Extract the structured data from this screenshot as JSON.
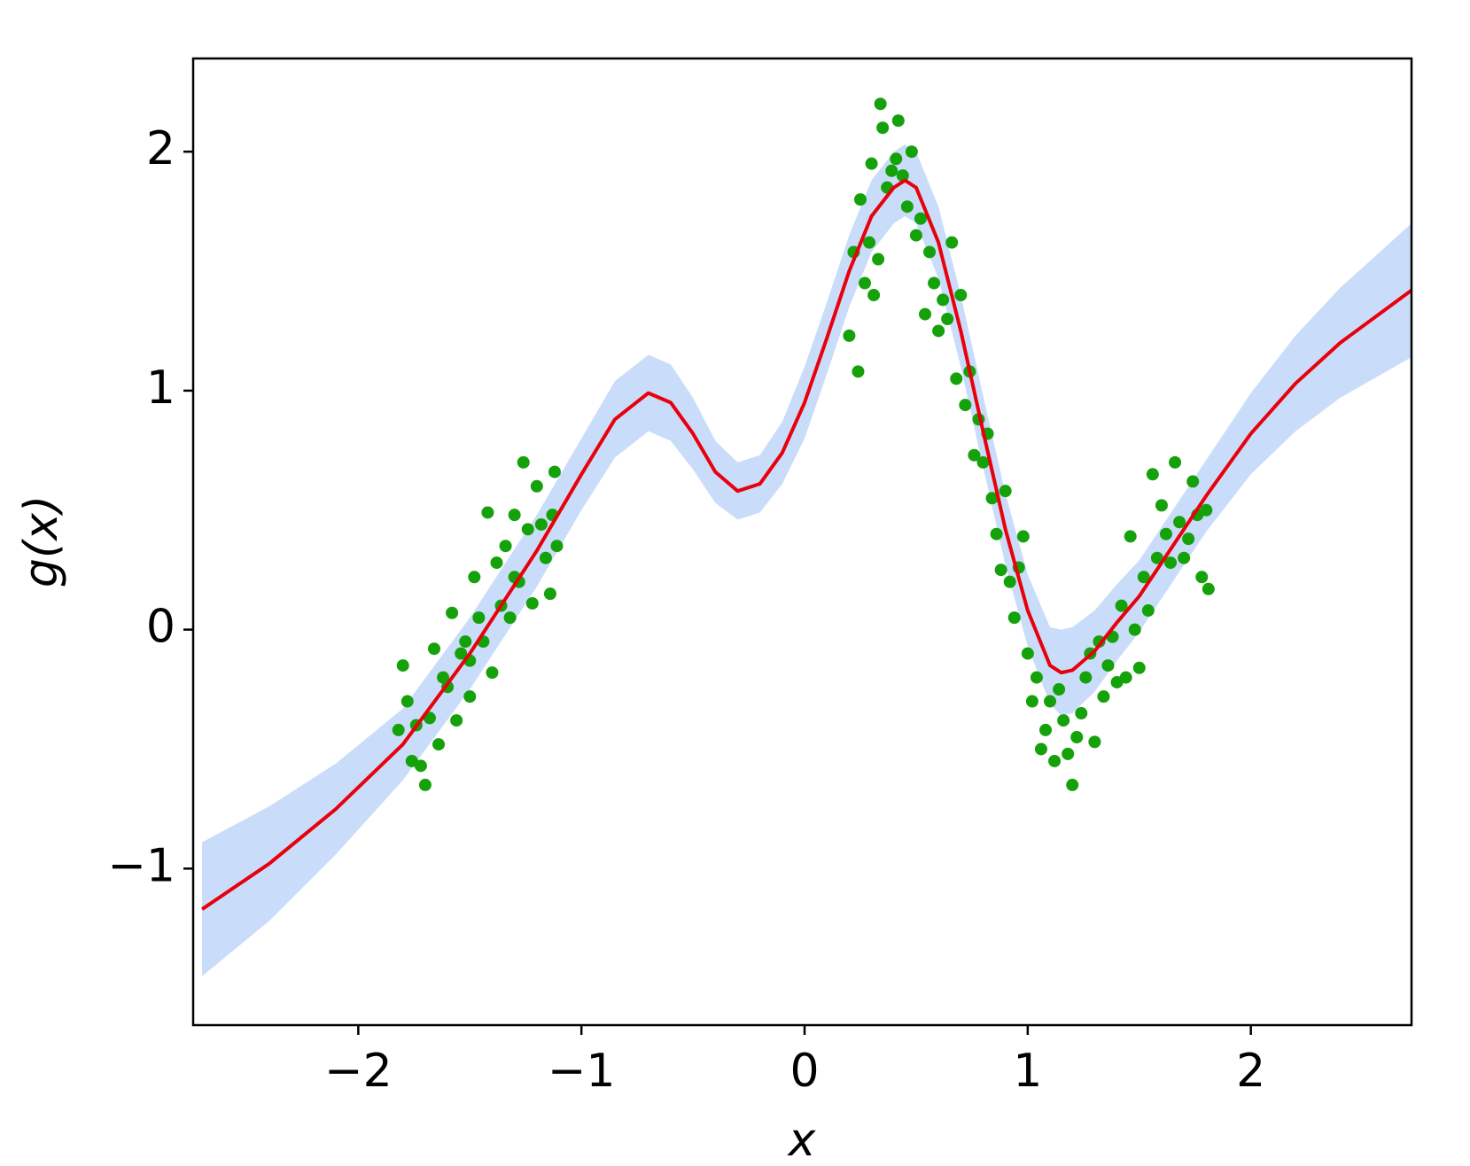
{
  "chart_data": {
    "type": "line",
    "xlabel": "x",
    "ylabel": "g(x)",
    "xlim": [
      -2.74,
      2.72
    ],
    "ylim": [
      -1.655,
      2.39
    ],
    "xticks": [
      {
        "value": -2,
        "label": "−2"
      },
      {
        "value": -1,
        "label": "−1"
      },
      0,
      1,
      2
    ],
    "yticks": [
      {
        "value": -1,
        "label": "−1"
      },
      0,
      1,
      2
    ],
    "x": [
      -2.7,
      -2.4,
      -2.1,
      -1.8,
      -1.5,
      -1.2,
      -1.0,
      -0.85,
      -0.7,
      -0.6,
      -0.5,
      -0.4,
      -0.3,
      -0.2,
      -0.1,
      0.0,
      0.1,
      0.2,
      0.3,
      0.4,
      0.45,
      0.5,
      0.6,
      0.7,
      0.8,
      0.9,
      1.0,
      1.1,
      1.15,
      1.2,
      1.3,
      1.4,
      1.5,
      1.6,
      1.7,
      1.8,
      2.0,
      2.2,
      2.4,
      2.72
    ],
    "series": [
      {
        "color": "#e8000b",
        "values": [
          -1.17,
          -0.98,
          -0.75,
          -0.48,
          -0.1,
          0.33,
          0.65,
          0.88,
          0.99,
          0.95,
          0.82,
          0.66,
          0.58,
          0.61,
          0.74,
          0.95,
          1.22,
          1.5,
          1.73,
          1.85,
          1.88,
          1.85,
          1.62,
          1.25,
          0.83,
          0.42,
          0.08,
          -0.15,
          -0.18,
          -0.17,
          -0.09,
          0.03,
          0.14,
          0.28,
          0.42,
          0.56,
          0.82,
          1.03,
          1.2,
          1.42
        ]
      }
    ],
    "band": {
      "color": "#c9dcfa",
      "upper": [
        -0.89,
        -0.74,
        -0.56,
        -0.33,
        0.05,
        0.48,
        0.8,
        1.04,
        1.15,
        1.11,
        0.97,
        0.79,
        0.7,
        0.73,
        0.87,
        1.1,
        1.37,
        1.65,
        1.88,
        2.0,
        2.03,
        2.0,
        1.77,
        1.4,
        0.98,
        0.57,
        0.23,
        0.01,
        0.0,
        0.01,
        0.08,
        0.19,
        0.29,
        0.43,
        0.57,
        0.71,
        0.99,
        1.23,
        1.43,
        1.7
      ],
      "lower": [
        -1.45,
        -1.22,
        -0.94,
        -0.63,
        -0.25,
        0.18,
        0.5,
        0.72,
        0.83,
        0.79,
        0.67,
        0.53,
        0.46,
        0.49,
        0.61,
        0.8,
        1.07,
        1.35,
        1.58,
        1.7,
        1.73,
        1.7,
        1.47,
        1.1,
        0.68,
        0.27,
        -0.07,
        -0.31,
        -0.36,
        -0.35,
        -0.26,
        -0.13,
        -0.01,
        0.13,
        0.27,
        0.41,
        0.65,
        0.83,
        0.97,
        1.14
      ]
    },
    "scatter": {
      "color": "#14a10a",
      "x": [
        -1.82,
        -1.8,
        -1.78,
        -1.76,
        -1.72,
        -1.7,
        -1.68,
        -1.66,
        -1.64,
        -1.62,
        -1.6,
        -1.58,
        -1.56,
        -1.54,
        -1.52,
        -1.5,
        -1.48,
        -1.46,
        -1.44,
        -1.42,
        -1.4,
        -1.38,
        -1.36,
        -1.34,
        -1.32,
        -1.3,
        -1.28,
        -1.26,
        -1.24,
        -1.22,
        -1.2,
        -1.18,
        -1.16,
        -1.14,
        -1.12,
        -1.11,
        -1.13,
        -1.74,
        -1.5,
        -1.3,
        0.2,
        0.22,
        0.24,
        0.25,
        0.27,
        0.29,
        0.3,
        0.31,
        0.33,
        0.34,
        0.35,
        0.37,
        0.39,
        0.41,
        0.42,
        0.44,
        0.46,
        0.48,
        0.5,
        0.52,
        0.54,
        0.56,
        0.58,
        0.6,
        0.62,
        0.64,
        0.66,
        0.68,
        0.7,
        0.72,
        0.74,
        0.76,
        0.78,
        0.8,
        0.82,
        0.84,
        0.86,
        0.88,
        0.9,
        0.92,
        0.94,
        0.96,
        0.98,
        1.0,
        1.02,
        1.04,
        1.06,
        1.08,
        1.1,
        1.12,
        1.14,
        1.16,
        1.18,
        1.2,
        1.22,
        1.24,
        1.26,
        1.28,
        1.3,
        1.32,
        1.34,
        1.36,
        1.38,
        1.4,
        1.42,
        1.44,
        1.46,
        1.48,
        1.5,
        1.52,
        1.54,
        1.56,
        1.58,
        1.6,
        1.62,
        1.64,
        1.66,
        1.68,
        1.7,
        1.72,
        1.74,
        1.76,
        1.78,
        1.8,
        1.81
      ],
      "y": [
        -0.42,
        -0.15,
        -0.3,
        -0.55,
        -0.57,
        -0.65,
        -0.37,
        -0.08,
        -0.48,
        -0.2,
        -0.24,
        0.07,
        -0.38,
        -0.1,
        -0.05,
        -0.28,
        0.22,
        0.05,
        -0.05,
        0.49,
        -0.18,
        0.28,
        0.1,
        0.35,
        0.05,
        0.48,
        0.2,
        0.7,
        0.42,
        0.11,
        0.6,
        0.44,
        0.3,
        0.15,
        0.66,
        0.35,
        0.48,
        -0.4,
        -0.13,
        0.22,
        1.23,
        1.58,
        1.08,
        1.8,
        1.45,
        1.62,
        1.95,
        1.4,
        1.55,
        2.2,
        2.1,
        1.85,
        1.92,
        1.97,
        2.13,
        1.9,
        1.77,
        2.0,
        1.65,
        1.72,
        1.32,
        1.58,
        1.45,
        1.25,
        1.38,
        1.3,
        1.62,
        1.05,
        1.4,
        0.94,
        1.08,
        0.73,
        0.88,
        0.7,
        0.82,
        0.55,
        0.4,
        0.25,
        0.58,
        0.2,
        0.05,
        0.26,
        0.39,
        -0.1,
        -0.3,
        -0.2,
        -0.5,
        -0.42,
        -0.3,
        -0.55,
        -0.25,
        -0.38,
        -0.52,
        -0.65,
        -0.45,
        -0.35,
        -0.2,
        -0.1,
        -0.47,
        -0.05,
        -0.28,
        -0.15,
        -0.03,
        -0.22,
        0.1,
        -0.2,
        0.39,
        0.0,
        -0.16,
        0.22,
        0.08,
        0.65,
        0.3,
        0.52,
        0.4,
        0.28,
        0.7,
        0.45,
        0.3,
        0.38,
        0.62,
        0.48,
        0.22,
        0.5,
        0.17
      ]
    }
  }
}
